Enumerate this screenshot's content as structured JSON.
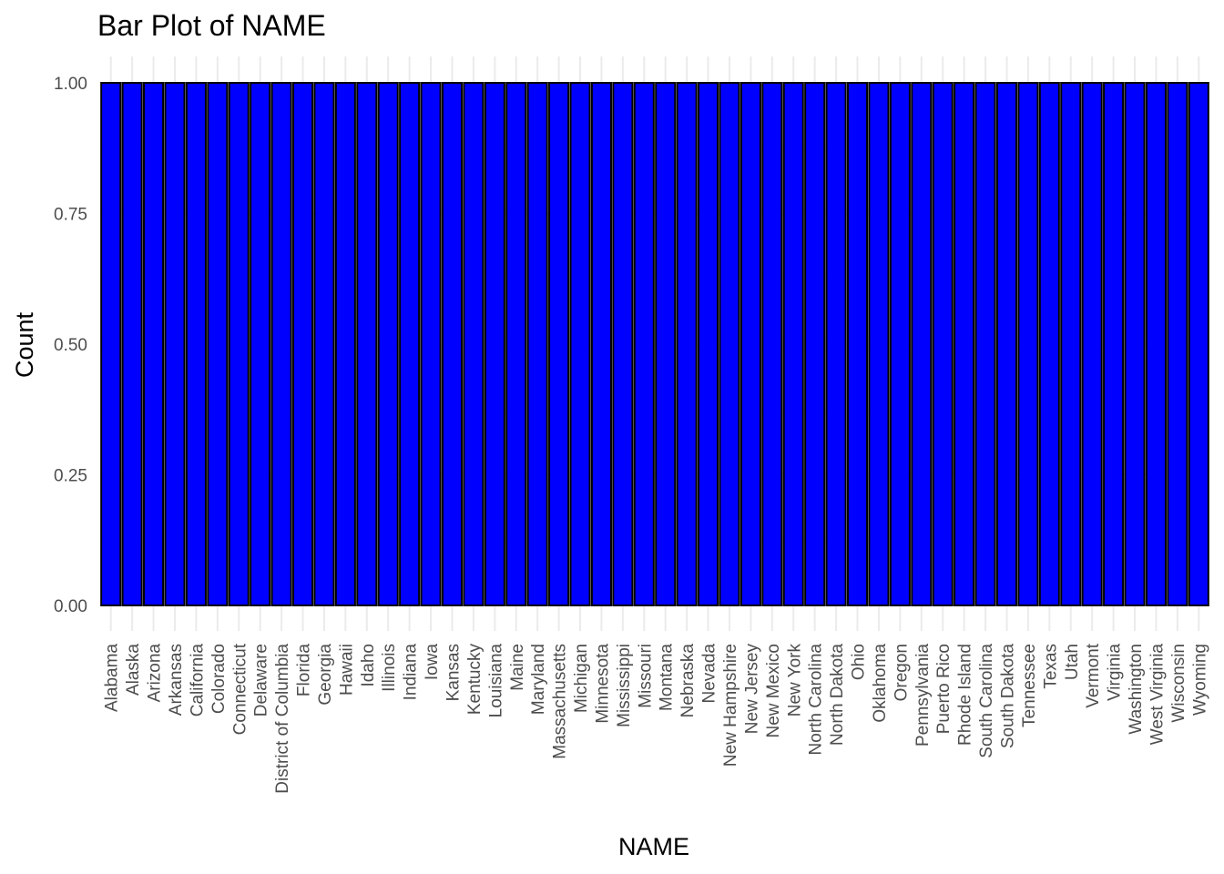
{
  "chart_data": {
    "type": "bar",
    "title": "Bar Plot of NAME",
    "xlabel": "NAME",
    "ylabel": "Count",
    "ylim": [
      0,
      1
    ],
    "yticks": [
      "0.00",
      "0.25",
      "0.50",
      "0.75",
      "1.00"
    ],
    "bar_fill": "#0000ff",
    "bar_outline": "#000000",
    "grid": true,
    "categories": [
      "Alabama",
      "Alaska",
      "Arizona",
      "Arkansas",
      "California",
      "Colorado",
      "Connecticut",
      "Delaware",
      "District of Columbia",
      "Florida",
      "Georgia",
      "Hawaii",
      "Idaho",
      "Illinois",
      "Indiana",
      "Iowa",
      "Kansas",
      "Kentucky",
      "Louisiana",
      "Maine",
      "Maryland",
      "Massachusetts",
      "Michigan",
      "Minnesota",
      "Mississippi",
      "Missouri",
      "Montana",
      "Nebraska",
      "Nevada",
      "New Hampshire",
      "New Jersey",
      "New Mexico",
      "New York",
      "North Carolina",
      "North Dakota",
      "Ohio",
      "Oklahoma",
      "Oregon",
      "Pennsylvania",
      "Puerto Rico",
      "Rhode Island",
      "South Carolina",
      "South Dakota",
      "Tennessee",
      "Texas",
      "Utah",
      "Vermont",
      "Virginia",
      "Washington",
      "West Virginia",
      "Wisconsin",
      "Wyoming"
    ],
    "values": [
      1,
      1,
      1,
      1,
      1,
      1,
      1,
      1,
      1,
      1,
      1,
      1,
      1,
      1,
      1,
      1,
      1,
      1,
      1,
      1,
      1,
      1,
      1,
      1,
      1,
      1,
      1,
      1,
      1,
      1,
      1,
      1,
      1,
      1,
      1,
      1,
      1,
      1,
      1,
      1,
      1,
      1,
      1,
      1,
      1,
      1,
      1,
      1,
      1,
      1,
      1,
      1
    ]
  }
}
